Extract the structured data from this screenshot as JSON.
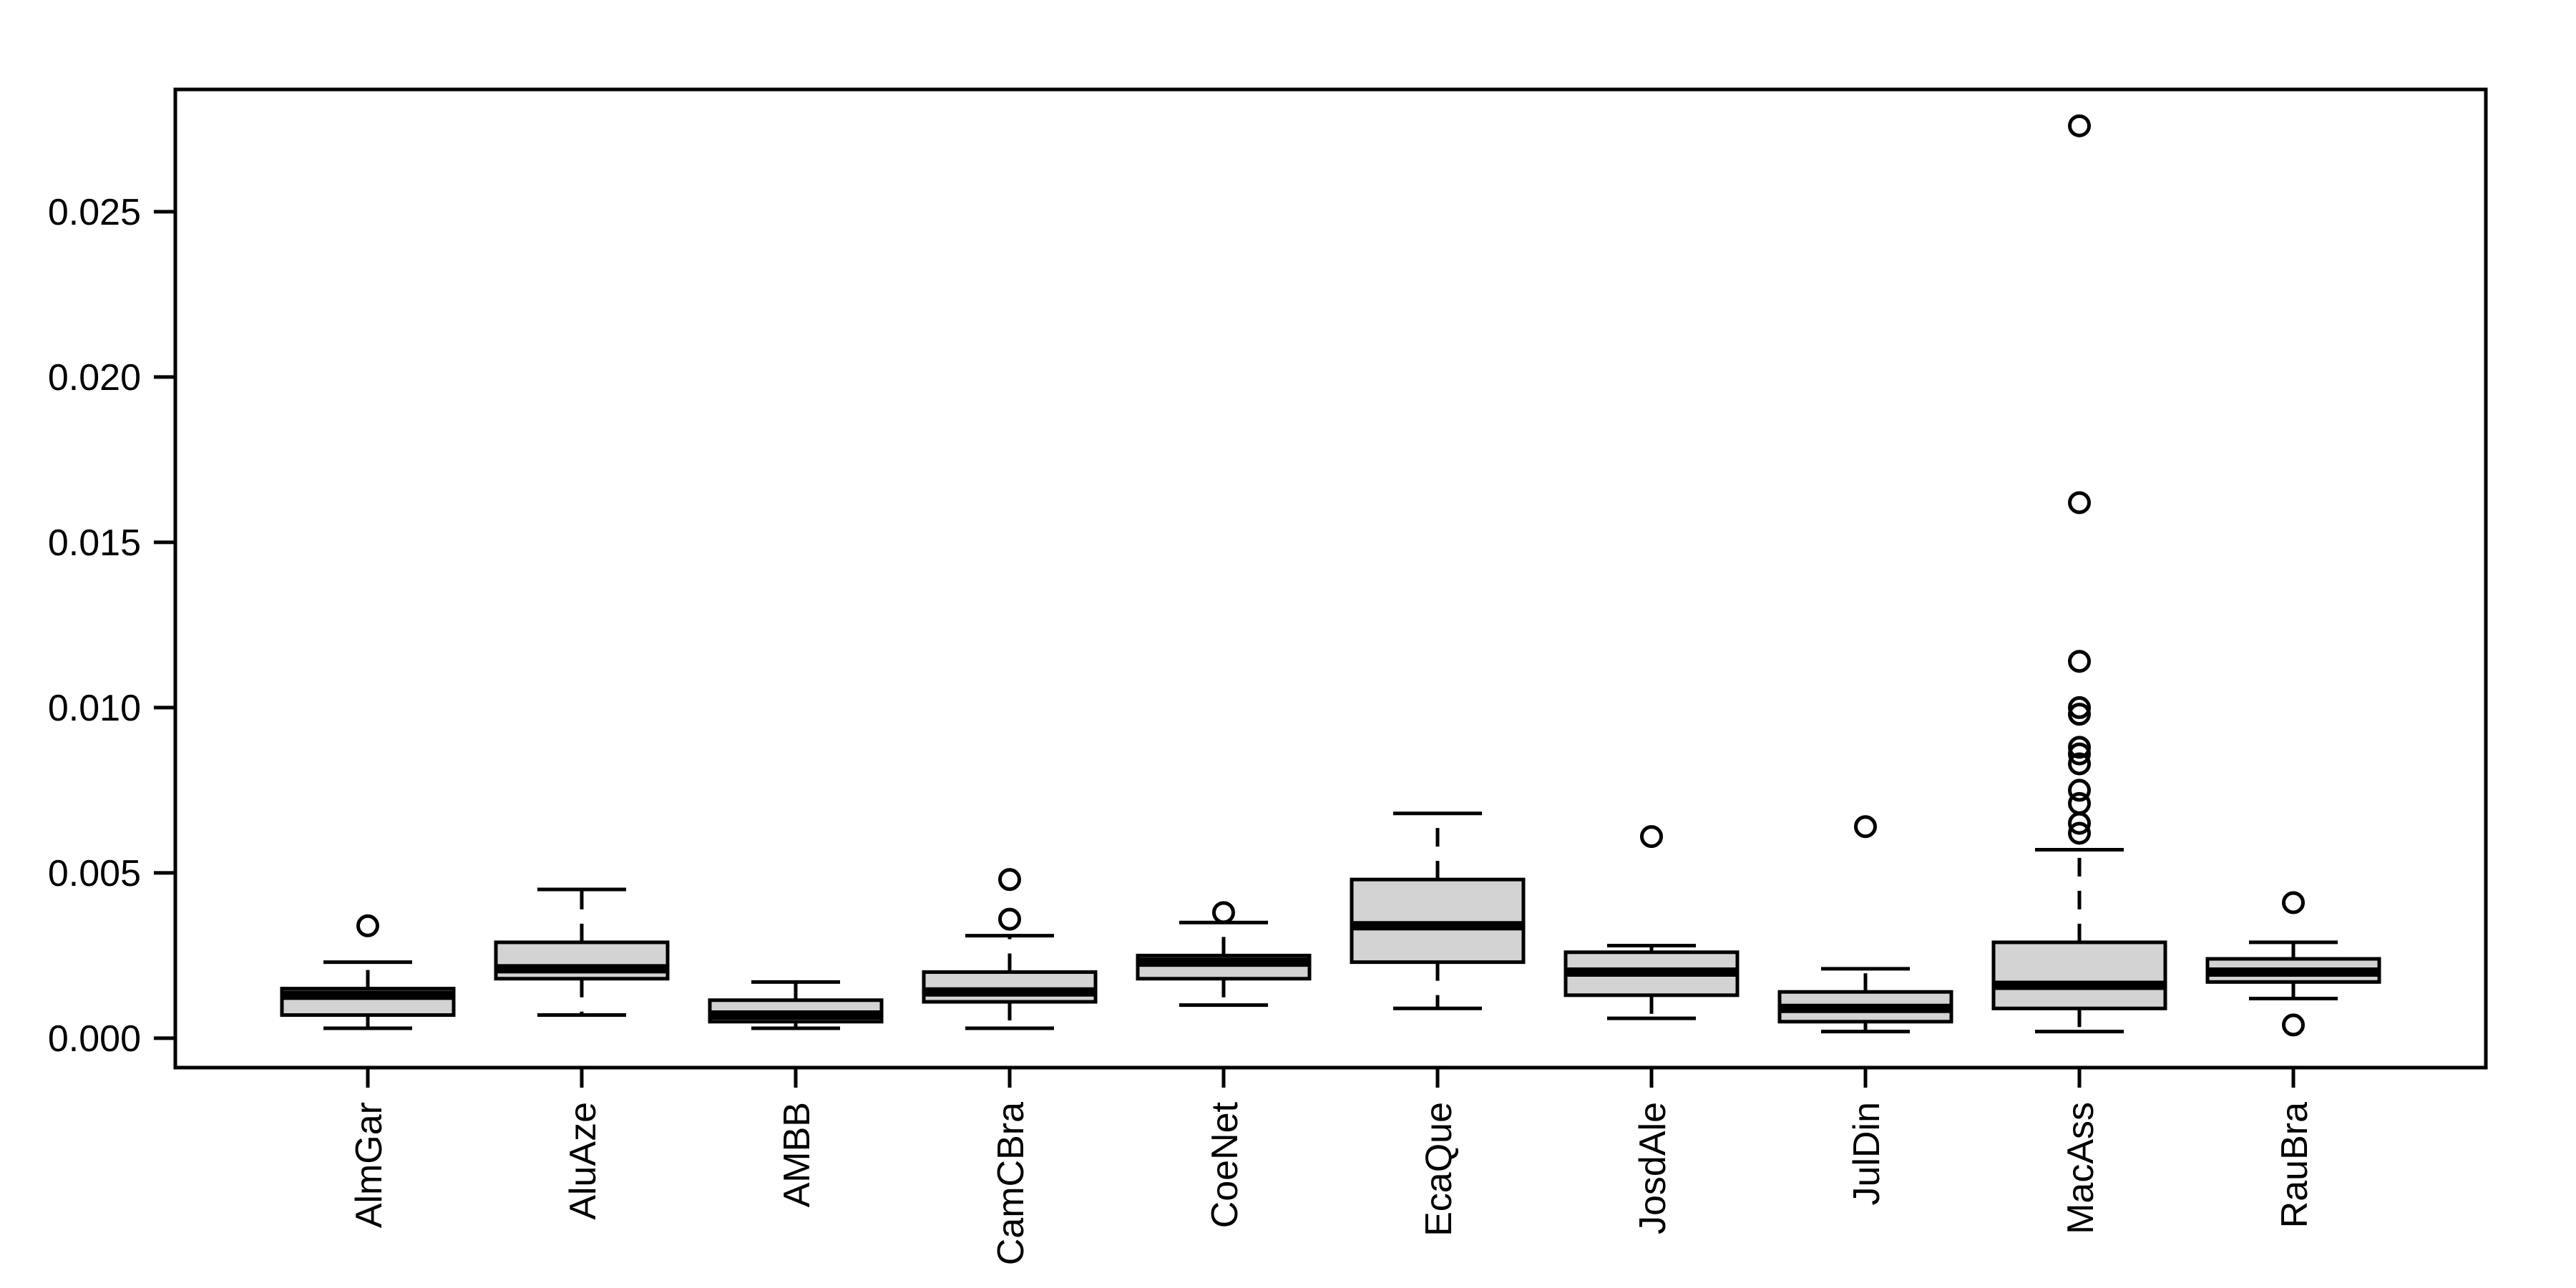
{
  "chart_data": {
    "type": "boxplot",
    "title": "",
    "xlabel": "",
    "ylabel": "",
    "grid": false,
    "legend": "none",
    "ylim": [
      -0.00089,
      0.0287
    ],
    "yticks": [
      0,
      0.005,
      0.01,
      0.015,
      0.02,
      0.025
    ],
    "ytick_labels": [
      "0.000",
      "0.005",
      "0.010",
      "0.015",
      "0.020",
      "0.025"
    ],
    "categories": [
      "AlmGar",
      "AluAze",
      "AMBB",
      "CamCBra",
      "CoeNet",
      "EcaQue",
      "JosdAle",
      "JulDin",
      "MacAss",
      "RauBra"
    ],
    "groups": [
      {
        "label": "AlmGar",
        "whisker_low": 0.0003,
        "q1": 0.0007,
        "median": 0.0013,
        "q3": 0.0015,
        "whisker_high": 0.0023,
        "outliers": [
          0.0034
        ]
      },
      {
        "label": "AluAze",
        "whisker_low": 0.0007,
        "q1": 0.0018,
        "median": 0.0021,
        "q3": 0.0029,
        "whisker_high": 0.0045,
        "outliers": []
      },
      {
        "label": "AMBB",
        "whisker_low": 0.0003,
        "q1": 0.0005,
        "median": 0.0007,
        "q3": 0.00115,
        "whisker_high": 0.0017,
        "outliers": []
      },
      {
        "label": "CamCBra",
        "whisker_low": 0.0003,
        "q1": 0.0011,
        "median": 0.0014,
        "q3": 0.002,
        "whisker_high": 0.0031,
        "outliers": [
          0.0036,
          0.0048
        ]
      },
      {
        "label": "CoeNet",
        "whisker_low": 0.001,
        "q1": 0.0018,
        "median": 0.0023,
        "q3": 0.0025,
        "whisker_high": 0.0035,
        "outliers": [
          0.0038
        ]
      },
      {
        "label": "EcaQue",
        "whisker_low": 0.0009,
        "q1": 0.0023,
        "median": 0.0034,
        "q3": 0.0048,
        "whisker_high": 0.0068,
        "outliers": []
      },
      {
        "label": "JosdAle",
        "whisker_low": 0.0006,
        "q1": 0.0013,
        "median": 0.002,
        "q3": 0.0026,
        "whisker_high": 0.0028,
        "outliers": [
          0.0061
        ]
      },
      {
        "label": "JulDin",
        "whisker_low": 0.0002,
        "q1": 0.0005,
        "median": 0.0009,
        "q3": 0.0014,
        "whisker_high": 0.0021,
        "outliers": [
          0.0064
        ]
      },
      {
        "label": "MacAss",
        "whisker_low": 0.0002,
        "q1": 0.0009,
        "median": 0.0016,
        "q3": 0.0029,
        "whisker_high": 0.0057,
        "outliers": [
          0.0062,
          0.0065,
          0.0071,
          0.0075,
          0.0083,
          0.0086,
          0.0088,
          0.0098,
          0.01,
          0.0114,
          0.0162,
          0.0276
        ]
      },
      {
        "label": "RauBra",
        "whisker_low": 0.0012,
        "q1": 0.0017,
        "median": 0.002,
        "q3": 0.0024,
        "whisker_high": 0.0029,
        "outliers": [
          0.0004,
          0.0041
        ]
      }
    ],
    "colors": {
      "box_fill": "#d3d3d3",
      "stroke": "#000000",
      "background": "#ffffff"
    }
  }
}
